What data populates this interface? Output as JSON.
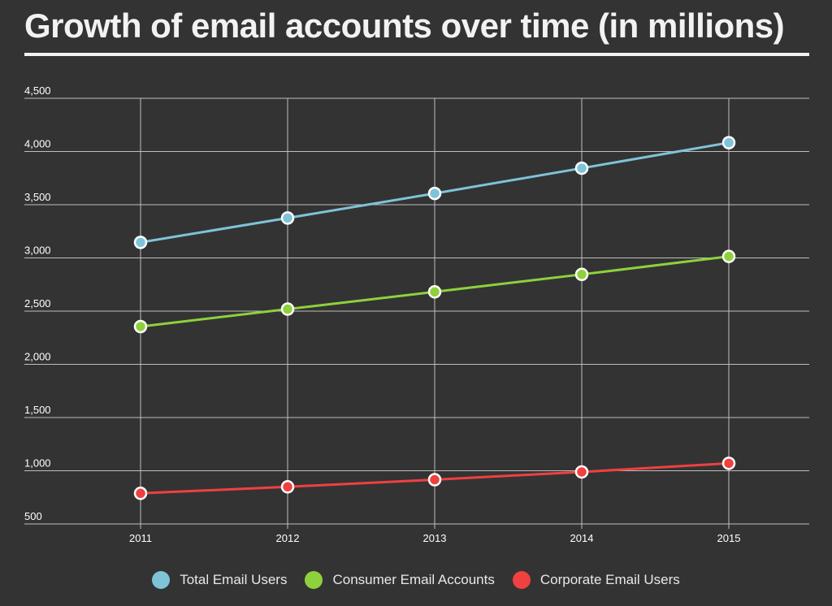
{
  "title": "Growth of email accounts over time (in millions)",
  "chart_data": {
    "type": "line",
    "title": "Growth of email accounts over time (in millions)",
    "xlabel": "",
    "ylabel": "",
    "categories": [
      "2011",
      "2012",
      "2013",
      "2014",
      "2015"
    ],
    "ylim": [
      500,
      4500
    ],
    "yticks": [
      500,
      1000,
      1500,
      2000,
      2500,
      3000,
      3500,
      4000,
      4500
    ],
    "ytick_labels": [
      "500",
      "1,000",
      "1,500",
      "2,000",
      "2,500",
      "3,000",
      "3,500",
      "4,000",
      "4,500"
    ],
    "grid": true,
    "legend_position": "bottom",
    "series": [
      {
        "name": "Total Email Users",
        "color": "#7fc3d9",
        "values": [
          3146,
          3375,
          3606,
          3843,
          4083
        ]
      },
      {
        "name": "Consumer Email Accounts",
        "color": "#8ed13d",
        "values": [
          2355,
          2519,
          2681,
          2845,
          3014
        ]
      },
      {
        "name": "Corporate Email Users",
        "color": "#f04040",
        "values": [
          788,
          849,
          916,
          989,
          1070
        ]
      }
    ]
  }
}
